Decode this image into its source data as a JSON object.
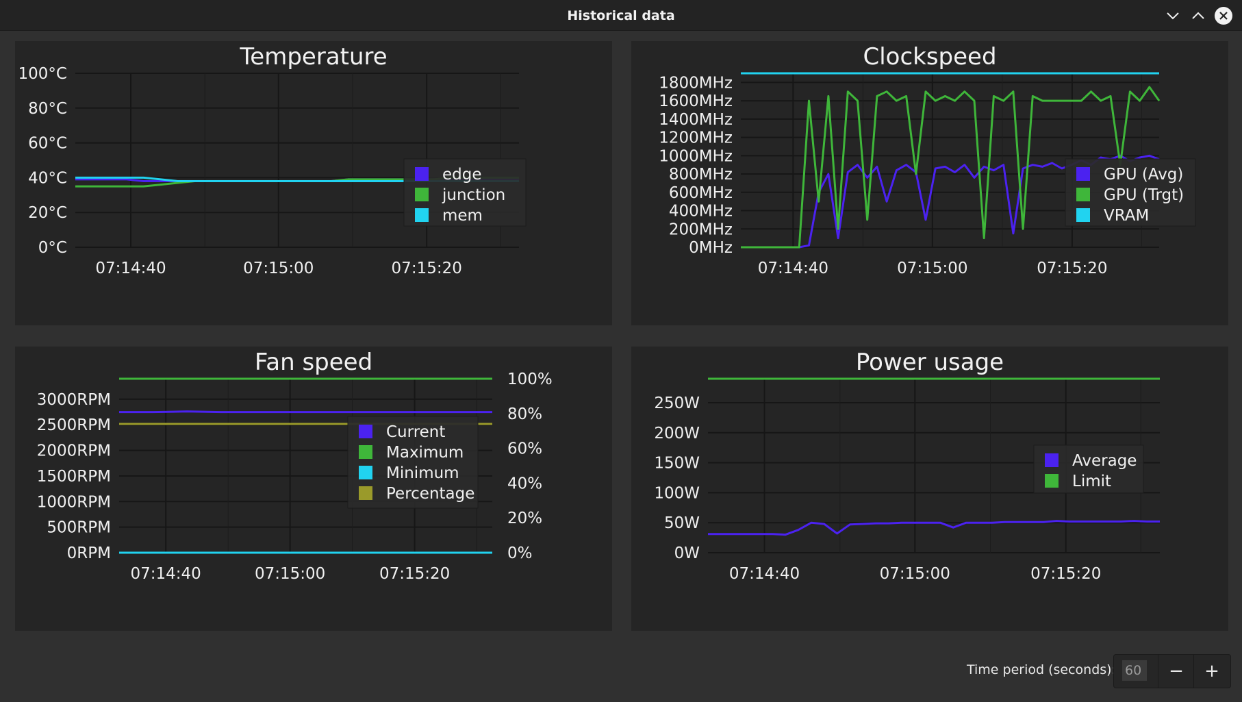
{
  "window": {
    "title": "Historical data"
  },
  "colors": {
    "purple": "#4b22f0",
    "green": "#3fb63a",
    "cyan": "#21d3f0",
    "olive": "#9a9a2a",
    "grid": "#161616",
    "text": "#f0f0f0"
  },
  "footer": {
    "label": "Time period (seconds):",
    "value": "60",
    "minus": "−",
    "plus": "+"
  },
  "chart_data": [
    {
      "type": "line",
      "title": "Temperature",
      "x_ticks": [
        "07:14:40",
        "07:15:00",
        "07:15:20"
      ],
      "y_ticks": [
        "0°C",
        "20°C",
        "40°C",
        "60°C",
        "80°C",
        "100°C"
      ],
      "ylim": [
        0,
        100
      ],
      "grid": true,
      "legend_position": "right",
      "series": [
        {
          "name": "edge",
          "color": "#4b22f0",
          "values": [
            39,
            39,
            39,
            39,
            38,
            38,
            38,
            38,
            38,
            38,
            38,
            38,
            38,
            38,
            38,
            38,
            39,
            39,
            39,
            39,
            39,
            39,
            39,
            39,
            39,
            39,
            39
          ]
        },
        {
          "name": "junction",
          "color": "#3fb63a",
          "values": [
            35,
            35,
            35,
            35,
            35,
            36,
            37,
            38,
            38,
            38,
            38,
            38,
            38,
            38,
            38,
            38,
            39,
            39,
            39,
            39,
            39,
            39,
            40,
            40,
            40,
            40,
            40
          ]
        },
        {
          "name": "mem",
          "color": "#21d3f0",
          "values": [
            40,
            40,
            40,
            40,
            40,
            39,
            38,
            38,
            38,
            38,
            38,
            38,
            38,
            38,
            38,
            38,
            38,
            38,
            38,
            38,
            38,
            38,
            38,
            38,
            38,
            38,
            38
          ]
        }
      ]
    },
    {
      "type": "line",
      "title": "Clockspeed",
      "x_ticks": [
        "07:14:40",
        "07:15:00",
        "07:15:20"
      ],
      "y_ticks": [
        "0MHz",
        "200MHz",
        "400MHz",
        "600MHz",
        "800MHz",
        "1000MHz",
        "1200MHz",
        "1400MHz",
        "1600MHz",
        "1800MHz"
      ],
      "ylim": [
        0,
        1900
      ],
      "grid": true,
      "legend_position": "right",
      "series": [
        {
          "name": "GPU (Avg)",
          "color": "#4b22f0",
          "values": [
            0,
            0,
            0,
            0,
            0,
            0,
            0,
            20,
            600,
            800,
            100,
            820,
            900,
            760,
            880,
            500,
            840,
            900,
            820,
            300,
            860,
            880,
            820,
            900,
            760,
            880,
            840,
            900,
            150,
            860,
            900,
            880,
            920,
            860,
            900,
            950,
            900,
            980,
            960,
            1000,
            940,
            980,
            1000,
            960
          ]
        },
        {
          "name": "GPU (Trgt)",
          "color": "#3fb63a",
          "values": [
            0,
            0,
            0,
            0,
            0,
            0,
            0,
            1600,
            500,
            1650,
            200,
            1700,
            1600,
            300,
            1650,
            1700,
            1600,
            1650,
            800,
            1700,
            1600,
            1650,
            1600,
            1700,
            1600,
            100,
            1650,
            1600,
            1700,
            200,
            1650,
            1600,
            1600,
            1600,
            1600,
            1600,
            1700,
            1600,
            1650,
            900,
            1700,
            1600,
            1750,
            1600
          ]
        },
        {
          "name": "VRAM",
          "color": "#21d3f0",
          "values": [
            1900,
            1900,
            1900,
            1900,
            1900,
            1900,
            1900,
            1900,
            1900,
            1900,
            1900,
            1900,
            1900,
            1900,
            1900,
            1900,
            1900,
            1900,
            1900,
            1900,
            1900,
            1900,
            1900,
            1900,
            1900,
            1900,
            1900,
            1900,
            1900,
            1900,
            1900,
            1900,
            1900,
            1900,
            1900,
            1900,
            1900,
            1900,
            1900,
            1900,
            1900,
            1900,
            1900,
            1900
          ]
        }
      ]
    },
    {
      "type": "line",
      "title": "Fan speed",
      "x_ticks": [
        "07:14:40",
        "07:15:00",
        "07:15:20"
      ],
      "y_ticks": [
        "0RPM",
        "500RPM",
        "1000RPM",
        "1500RPM",
        "2000RPM",
        "2500RPM",
        "3000RPM"
      ],
      "y2_ticks": [
        "0%",
        "20%",
        "40%",
        "60%",
        "80%",
        "100%"
      ],
      "ylim": [
        0,
        3400
      ],
      "y2lim": [
        0,
        100
      ],
      "grid": true,
      "legend_position": "right",
      "series": [
        {
          "name": "Current",
          "color": "#4b22f0",
          "axis": "left",
          "values": [
            2750,
            2750,
            2760,
            2750,
            2750,
            2750,
            2750,
            2750,
            2750,
            2750,
            2750,
            2750
          ]
        },
        {
          "name": "Maximum",
          "color": "#3fb63a",
          "axis": "left",
          "values": [
            3400,
            3400,
            3400,
            3400,
            3400,
            3400,
            3400,
            3400,
            3400,
            3400,
            3400,
            3400
          ]
        },
        {
          "name": "Minimum",
          "color": "#21d3f0",
          "axis": "left",
          "values": [
            0,
            0,
            0,
            0,
            0,
            0,
            0,
            0,
            0,
            0,
            0,
            0
          ]
        },
        {
          "name": "Percentage",
          "color": "#9a9a2a",
          "axis": "right",
          "values": [
            74,
            74,
            74,
            74,
            74,
            74,
            74,
            74,
            74,
            74,
            74,
            74
          ]
        }
      ]
    },
    {
      "type": "line",
      "title": "Power usage",
      "x_ticks": [
        "07:14:40",
        "07:15:00",
        "07:15:20"
      ],
      "y_ticks": [
        "0W",
        "50W",
        "100W",
        "150W",
        "200W",
        "250W"
      ],
      "ylim": [
        0,
        290
      ],
      "grid": true,
      "legend_position": "bottom-right",
      "series": [
        {
          "name": "Average",
          "color": "#4b22f0",
          "values": [
            31,
            31,
            31,
            31,
            31,
            31,
            30,
            38,
            50,
            48,
            32,
            47,
            48,
            49,
            49,
            50,
            50,
            50,
            50,
            42,
            50,
            50,
            50,
            51,
            51,
            51,
            51,
            53,
            52,
            52,
            52,
            52,
            52,
            53,
            52,
            52
          ]
        },
        {
          "name": "Limit",
          "color": "#3fb63a",
          "values": [
            290,
            290,
            290,
            290,
            290,
            290,
            290,
            290,
            290,
            290,
            290,
            290,
            290,
            290,
            290,
            290,
            290,
            290,
            290,
            290,
            290,
            290,
            290,
            290,
            290,
            290,
            290,
            290,
            290,
            290,
            290,
            290,
            290,
            290,
            290,
            290
          ]
        }
      ]
    }
  ]
}
